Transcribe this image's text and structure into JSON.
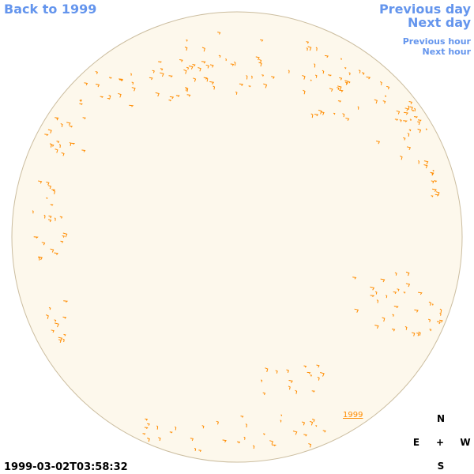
{
  "header": {
    "back_link": "Back to 1999",
    "previous_day": "Previous day",
    "next_day": "Next day",
    "previous_hour": "Previous hour",
    "next_hour": "Next hour"
  },
  "disk": {
    "year_label": "1999"
  },
  "compass": {
    "north": "N",
    "east": "E",
    "center": "+",
    "west": "W",
    "south": "S"
  },
  "footer": {
    "timestamp": "1999-03-02T03:58:32"
  }
}
